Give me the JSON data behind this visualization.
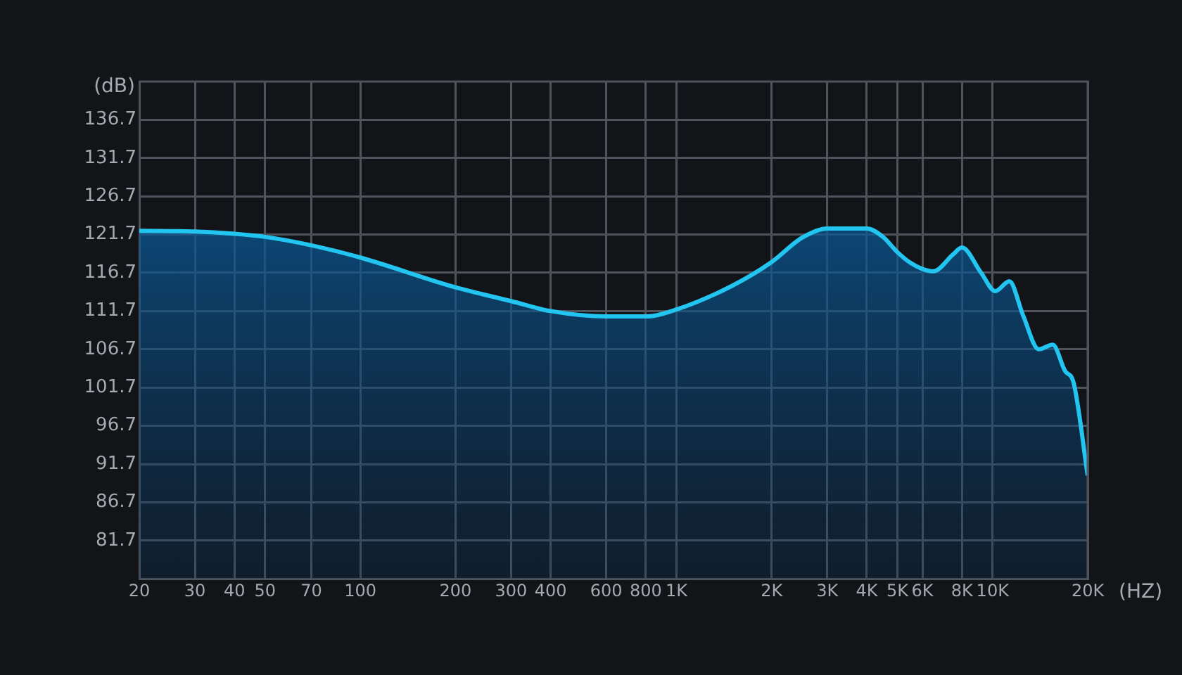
{
  "chart_data": {
    "type": "area",
    "ylabel": "(dB)",
    "xlabel": "(HZ)",
    "log": "x",
    "grid": true,
    "marker": "none",
    "line_style": "solid",
    "legend": false,
    "xlim": [
      20,
      20000
    ],
    "xticks": [
      20,
      30,
      40,
      50,
      70,
      100,
      200,
      300,
      400,
      600,
      800,
      {
        "value": 1000,
        "label": "1K"
      },
      {
        "value": 2000,
        "label": "2K"
      },
      {
        "value": 3000,
        "label": "3K"
      },
      {
        "value": 4000,
        "label": "4K"
      },
      {
        "value": 5000,
        "label": "5K"
      },
      {
        "value": 6000,
        "label": "6K"
      },
      {
        "value": 8000,
        "label": "8K"
      },
      {
        "value": 10000,
        "label": "10K"
      },
      {
        "value": 20000,
        "label": "20K"
      }
    ],
    "ylim": [
      76.7,
      141.7
    ],
    "yticks": [
      81.7,
      86.7,
      91.7,
      96.7,
      101.7,
      106.7,
      111.7,
      116.7,
      121.7,
      126.7,
      131.7,
      136.7
    ],
    "series": [
      {
        "color": "#22c4f0",
        "x": [
          20,
          30,
          40,
          50,
          70,
          100,
          200,
          300,
          400,
          600,
          800,
          1000,
          1500,
          2000,
          2500,
          3000,
          4000,
          4500,
          5000,
          5500,
          6000,
          6500,
          7500,
          8000,
          9200,
          10200,
          11300,
          12500,
          14000,
          15500,
          17000,
          18000,
          20000
        ],
        "values": [
          122.2,
          122.1,
          121.8,
          121.4,
          120.3,
          118.7,
          114.8,
          113.0,
          111.7,
          111.0,
          111.0,
          111.9,
          115.0,
          118.1,
          121.3,
          122.5,
          122.5,
          121.4,
          119.4,
          118.0,
          117.2,
          116.9,
          119.1,
          120.0,
          116.7,
          114.3,
          115.6,
          111.1,
          106.7,
          107.3,
          103.8,
          102.5,
          90.2
        ]
      }
    ]
  }
}
